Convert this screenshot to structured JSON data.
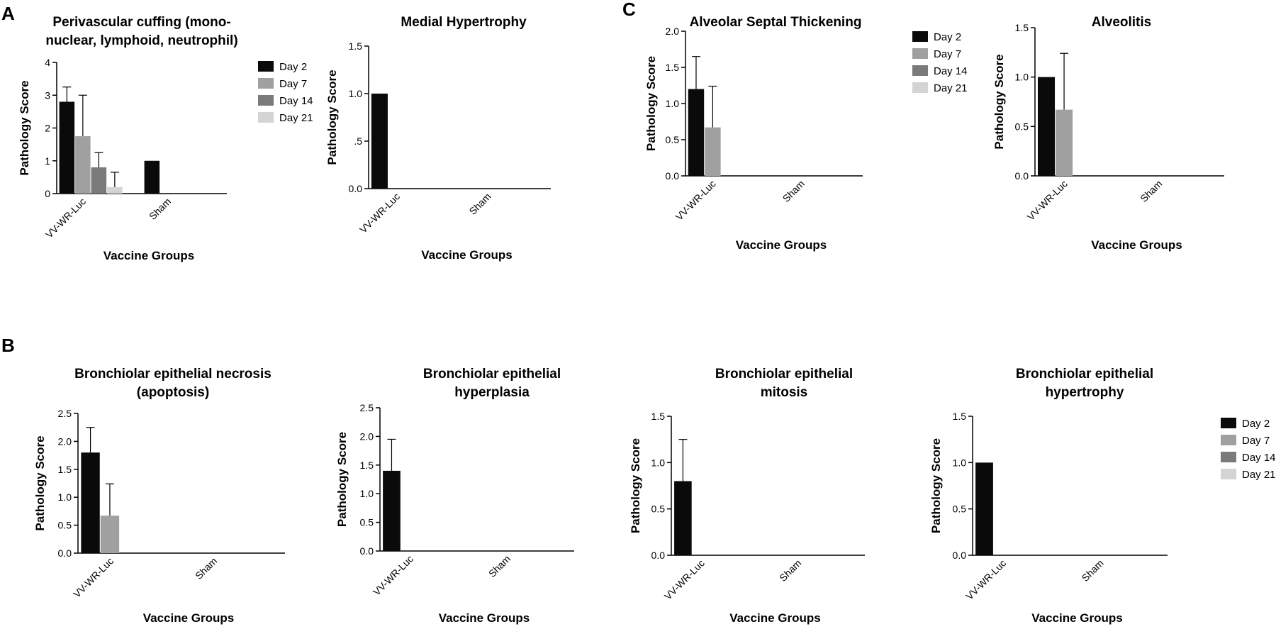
{
  "panel_labels": {
    "a": "A",
    "b": "B",
    "c": "C"
  },
  "colors": {
    "Day 2": "#0a0a0a",
    "Day 7": "#a0a0a0",
    "Day 14": "#7a7a7a",
    "Day 21": "#d4d4d4"
  },
  "chart_data": [
    {
      "id": "perivascular",
      "type": "bar",
      "title": [
        "Perivascular cuffing (mono-",
        "nuclear, lymphoid, neutrophil)"
      ],
      "xlabel": "Vaccine Groups",
      "ylabel": "Pathology Score",
      "ylim": [
        0,
        4
      ],
      "yticks": [
        "0",
        "1",
        "2",
        "3",
        "4"
      ],
      "categories": [
        "VV-WR-Luc",
        "Sham"
      ],
      "legend": [
        "Day 2",
        "Day 7",
        "Day 14",
        "Day 21"
      ],
      "series": [
        {
          "name": "Day 2",
          "values": [
            2.8,
            1.0
          ],
          "errors": [
            0.45,
            0
          ]
        },
        {
          "name": "Day 7",
          "values": [
            1.75,
            0
          ],
          "errors": [
            1.25,
            0
          ]
        },
        {
          "name": "Day 14",
          "values": [
            0.8,
            0
          ],
          "errors": [
            0.45,
            0
          ]
        },
        {
          "name": "Day 21",
          "values": [
            0.2,
            0
          ],
          "errors": [
            0.45,
            0
          ]
        }
      ]
    },
    {
      "id": "medial",
      "type": "bar",
      "title": [
        "Medial Hypertrophy"
      ],
      "xlabel": "Vaccine Groups",
      "ylabel": "Pathology Score",
      "ylim": [
        0,
        1.5
      ],
      "yticks": [
        "0.0",
        ".5",
        "1.0",
        "1.5"
      ],
      "categories": [
        "VV-WR-Luc",
        "Sham"
      ],
      "legend": [],
      "series": [
        {
          "name": "Day 2",
          "values": [
            1.0,
            0
          ],
          "errors": [
            0,
            0
          ]
        },
        {
          "name": "Day 7",
          "values": [
            0,
            0
          ],
          "errors": [
            0,
            0
          ]
        },
        {
          "name": "Day 14",
          "values": [
            0,
            0
          ],
          "errors": [
            0,
            0
          ]
        },
        {
          "name": "Day 21",
          "values": [
            0,
            0
          ],
          "errors": [
            0,
            0
          ]
        }
      ]
    },
    {
      "id": "alveolar-septal",
      "type": "bar",
      "title": [
        "Alveolar Septal Thickening"
      ],
      "xlabel": "Vaccine Groups",
      "ylabel": "Pathology Score",
      "ylim": [
        0,
        2.0
      ],
      "yticks": [
        "0.0",
        "0.5",
        "1.0",
        "1.5",
        "2.0"
      ],
      "categories": [
        "VV-WR-Luc",
        "Sham"
      ],
      "legend": [
        "Day 2",
        "Day 7",
        "Day 14",
        "Day 21"
      ],
      "series": [
        {
          "name": "Day 2",
          "values": [
            1.2,
            0
          ],
          "errors": [
            0.45,
            0
          ]
        },
        {
          "name": "Day 7",
          "values": [
            0.67,
            0
          ],
          "errors": [
            0.57,
            0
          ]
        },
        {
          "name": "Day 14",
          "values": [
            0,
            0
          ],
          "errors": [
            0,
            0
          ]
        },
        {
          "name": "Day 21",
          "values": [
            0,
            0
          ],
          "errors": [
            0,
            0
          ]
        }
      ]
    },
    {
      "id": "alveolitis",
      "type": "bar",
      "title": [
        "Alveolitis"
      ],
      "xlabel": "Vaccine Groups",
      "ylabel": "Pathology Score",
      "ylim": [
        0,
        1.5
      ],
      "yticks": [
        "0.0",
        "0.5",
        "1.0",
        "1.5"
      ],
      "categories": [
        "VV-WR-Luc",
        "Sham"
      ],
      "legend": [],
      "series": [
        {
          "name": "Day 2",
          "values": [
            1.0,
            0
          ],
          "errors": [
            0,
            0
          ]
        },
        {
          "name": "Day 7",
          "values": [
            0.67,
            0
          ],
          "errors": [
            0.57,
            0
          ]
        },
        {
          "name": "Day 14",
          "values": [
            0,
            0
          ],
          "errors": [
            0,
            0
          ]
        },
        {
          "name": "Day 21",
          "values": [
            0,
            0
          ],
          "errors": [
            0,
            0
          ]
        }
      ]
    },
    {
      "id": "bronchiolar-necrosis",
      "type": "bar",
      "title": [
        "Bronchiolar epithelial necrosis",
        "(apoptosis)"
      ],
      "xlabel": "Vaccine Groups",
      "ylabel": "Pathology Score",
      "ylim": [
        0,
        2.5
      ],
      "yticks": [
        "0.0",
        "0.5",
        "1.0",
        "1.5",
        "2.0",
        "2.5"
      ],
      "categories": [
        "VV-WR-Luc",
        "Sham"
      ],
      "legend": [],
      "series": [
        {
          "name": "Day 2",
          "values": [
            1.8,
            0
          ],
          "errors": [
            0.45,
            0
          ]
        },
        {
          "name": "Day 7",
          "values": [
            0.67,
            0
          ],
          "errors": [
            0.57,
            0
          ]
        },
        {
          "name": "Day 14",
          "values": [
            0,
            0
          ],
          "errors": [
            0,
            0
          ]
        },
        {
          "name": "Day 21",
          "values": [
            0,
            0
          ],
          "errors": [
            0,
            0
          ]
        }
      ]
    },
    {
      "id": "bronchiolar-hyperplasia",
      "type": "bar",
      "title": [
        "Bronchiolar epithelial",
        "hyperplasia"
      ],
      "xlabel": "Vaccine Groups",
      "ylabel": "Pathology Score",
      "ylim": [
        0,
        2.5
      ],
      "yticks": [
        "0.0",
        "0.5",
        "1.0",
        "1.5",
        "2.0",
        "2.5"
      ],
      "categories": [
        "VV-WR-Luc",
        "Sham"
      ],
      "legend": [],
      "series": [
        {
          "name": "Day 2",
          "values": [
            1.4,
            0
          ],
          "errors": [
            0.55,
            0
          ]
        },
        {
          "name": "Day 7",
          "values": [
            0,
            0
          ],
          "errors": [
            0,
            0
          ]
        },
        {
          "name": "Day 14",
          "values": [
            0,
            0
          ],
          "errors": [
            0,
            0
          ]
        },
        {
          "name": "Day 21",
          "values": [
            0,
            0
          ],
          "errors": [
            0,
            0
          ]
        }
      ]
    },
    {
      "id": "bronchiolar-mitosis",
      "type": "bar",
      "title": [
        "Bronchiolar epithelial",
        "mitosis"
      ],
      "xlabel": "Vaccine Groups",
      "ylabel": "Pathology Score",
      "ylim": [
        0,
        1.5
      ],
      "yticks": [
        "0.0",
        "0.5",
        "1.0",
        "1.5"
      ],
      "categories": [
        "VV-WR-Luc",
        "Sham"
      ],
      "legend": [],
      "series": [
        {
          "name": "Day 2",
          "values": [
            0.8,
            0
          ],
          "errors": [
            0.45,
            0
          ]
        },
        {
          "name": "Day 7",
          "values": [
            0,
            0
          ],
          "errors": [
            0,
            0
          ]
        },
        {
          "name": "Day 14",
          "values": [
            0,
            0
          ],
          "errors": [
            0,
            0
          ]
        },
        {
          "name": "Day 21",
          "values": [
            0,
            0
          ],
          "errors": [
            0,
            0
          ]
        }
      ]
    },
    {
      "id": "bronchiolar-hypertrophy",
      "type": "bar",
      "title": [
        "Bronchiolar epithelial",
        "hypertrophy"
      ],
      "xlabel": "Vaccine Groups",
      "ylabel": "Pathology Score",
      "ylim": [
        0,
        1.5
      ],
      "yticks": [
        "0.0",
        "0.5",
        "1.0",
        "1.5"
      ],
      "categories": [
        "VV-WR-Luc",
        "Sham"
      ],
      "legend": [
        "Day 2",
        "Day 7",
        "Day 14",
        "Day 21"
      ],
      "series": [
        {
          "name": "Day 2",
          "values": [
            1.0,
            0
          ],
          "errors": [
            0,
            0
          ]
        },
        {
          "name": "Day 7",
          "values": [
            0,
            0
          ],
          "errors": [
            0,
            0
          ]
        },
        {
          "name": "Day 14",
          "values": [
            0,
            0
          ],
          "errors": [
            0,
            0
          ]
        },
        {
          "name": "Day 21",
          "values": [
            0,
            0
          ],
          "errors": [
            0,
            0
          ]
        }
      ]
    }
  ]
}
